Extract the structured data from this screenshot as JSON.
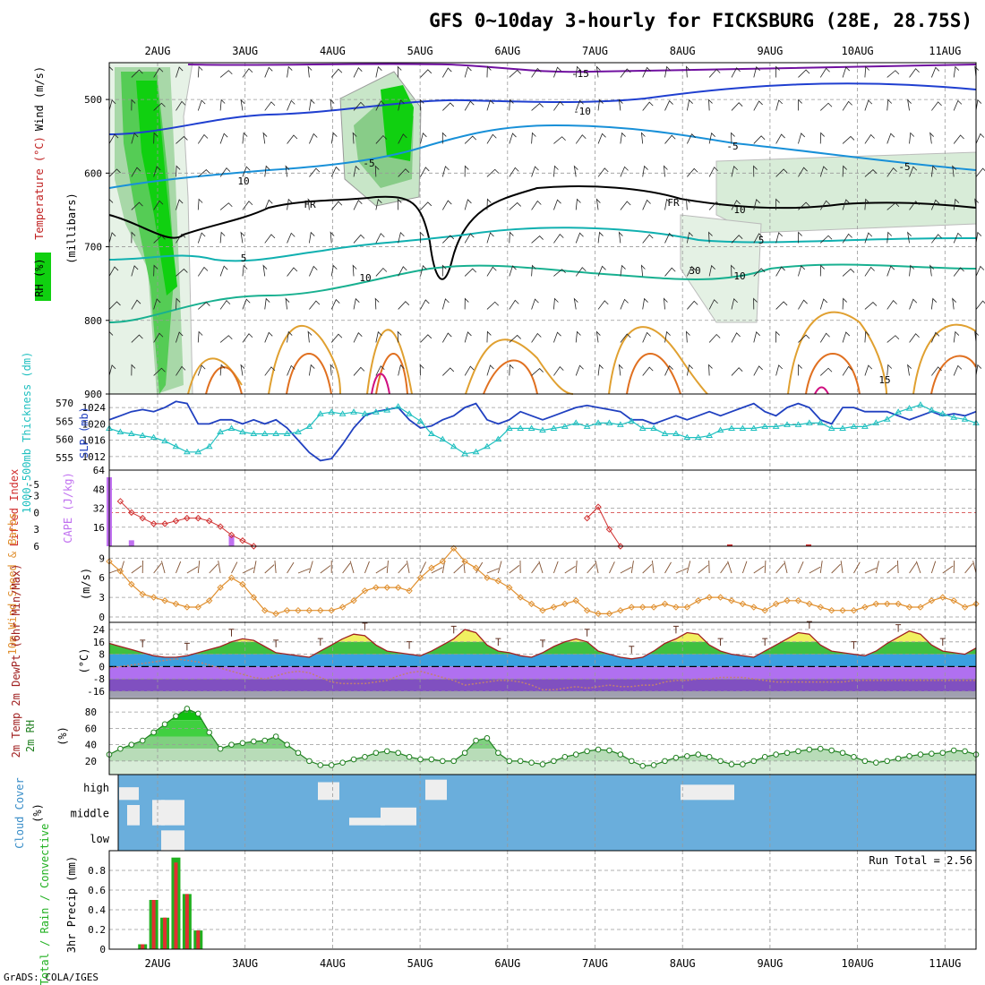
{
  "title": "GFS 0~10day 3-hourly for FICKSBURG (28E, 28.75S)",
  "credit": "GrADS: COLA/IGES",
  "dates": [
    "2AUG",
    "3AUG",
    "4AUG",
    "5AUG",
    "6AUG",
    "7AUG",
    "8AUG",
    "9AUG",
    "10AUG",
    "11AUG"
  ],
  "colors": {
    "rh_green": "#10d010",
    "rh_light": "#e6f2e6",
    "temp_cold": "#1f3fd0",
    "temp_cool": "#20b8b0",
    "temp_warm": "#e0a030",
    "slp": "#2040c0",
    "thickness": "#20c0c0",
    "lifted": "#d03030",
    "cape": "#c070f0",
    "wind10m": "#e09030",
    "barb10m": "#805030",
    "temp2m": "#a02020",
    "rh2m_line": "#208020",
    "cloud": "#6aaedc",
    "precip_total": "#20b020",
    "precip_conv": "#e03030"
  },
  "chart_data": [
    {
      "id": "upper",
      "type": "contour",
      "ylabel_parts": [
        "RH (%)",
        "Temperature (°C)",
        "Wind (m/s)"
      ],
      "yaxis_title": "(millibars)",
      "ylim": [
        900,
        450
      ],
      "yticks": [
        500,
        600,
        700,
        800,
        900
      ],
      "contour_labels": [
        "-15",
        "-10",
        "-5",
        "FR",
        "FR",
        "-5",
        "-5",
        "5",
        "5",
        "10",
        "10",
        "15",
        "10",
        "10",
        "30"
      ]
    },
    {
      "id": "slp",
      "type": "line",
      "ylabel_left": "1000-500mb Thickness (dm)",
      "ylabel_right": "SLP (mb)",
      "left_ticks": [
        555,
        560,
        565,
        570
      ],
      "right_ticks": [
        1012,
        1016,
        1020,
        1024
      ],
      "series": [
        {
          "name": "SLP (mb)",
          "values": [
            1021,
            1022,
            1023,
            1023.5,
            1023,
            1024,
            1025.5,
            1025,
            1020,
            1020,
            1021,
            1021,
            1020,
            1021,
            1020,
            1021,
            1019,
            1016,
            1013,
            1011,
            1011.5,
            1015,
            1019,
            1022,
            1023,
            1023.5,
            1024,
            1021,
            1019,
            1019.5,
            1021,
            1022,
            1024,
            1025,
            1021,
            1020,
            1021,
            1023,
            1022,
            1021,
            1022,
            1023,
            1024,
            1024.5,
            1024,
            1023.5,
            1023,
            1021,
            1021,
            1020,
            1021,
            1022,
            1021,
            1022,
            1023,
            1022,
            1023,
            1024,
            1025,
            1023,
            1022,
            1024,
            1025,
            1024,
            1021,
            1020,
            1024,
            1024,
            1023,
            1023,
            1023,
            1022,
            1021,
            1022,
            1023,
            1022,
            1022.5,
            1022,
            1023
          ]
        },
        {
          "name": "1000-500mb Thickness (dm)",
          "values": [
            563,
            562,
            561.5,
            561,
            560.5,
            559.5,
            558,
            556.5,
            556.5,
            558,
            562,
            563,
            562,
            561.5,
            561.5,
            561.5,
            561.5,
            562,
            563.5,
            567,
            567.5,
            567,
            567.5,
            567,
            567.5,
            568,
            569,
            567,
            565,
            561.5,
            560,
            558,
            556,
            556.5,
            558,
            560,
            563,
            563,
            563,
            562.5,
            563,
            563.5,
            564.5,
            563.5,
            564.5,
            564.5,
            564,
            565,
            563,
            563,
            561.5,
            561.5,
            560.5,
            560.5,
            561,
            562.5,
            563,
            563,
            563,
            563.5,
            563.5,
            564,
            564,
            564.5,
            564.5,
            563,
            563,
            563.5,
            563.5,
            564.5,
            565.5,
            567.5,
            568.5,
            569.5,
            568,
            567,
            566,
            565.5,
            564.5
          ]
        }
      ]
    },
    {
      "id": "cape",
      "type": "bar+line",
      "ylabel_left": "Lifted Index",
      "ylabel_right": "CAPE (J/kg)",
      "left_ticks": [
        "-5",
        "-3",
        "0",
        "3",
        "6"
      ],
      "right_ticks": [
        16,
        32,
        48,
        64
      ],
      "series": [
        {
          "name": "Lifted Index",
          "values": [
            null,
            -2,
            0,
            1,
            2,
            2,
            1.5,
            1,
            1,
            1.5,
            2.5,
            4,
            5,
            6,
            null,
            null,
            null,
            null,
            null,
            null,
            null,
            null,
            null,
            null,
            null,
            null,
            null,
            null,
            null,
            null,
            null,
            null,
            null,
            null,
            null,
            null,
            null,
            null,
            null,
            null,
            null,
            null,
            null,
            1,
            -1,
            3,
            6
          ]
        },
        {
          "name": "CAPE (J/kg)",
          "values": [
            58,
            0,
            5,
            0,
            0,
            0,
            0,
            0,
            0,
            0,
            0,
            9,
            0,
            0,
            0,
            0,
            0,
            0,
            0,
            0,
            0,
            0,
            0,
            0,
            0,
            0,
            0,
            0,
            0,
            0,
            0,
            0,
            0,
            0,
            0,
            0,
            0,
            0,
            0,
            0,
            0,
            0,
            0,
            0,
            0,
            0,
            0,
            0,
            0,
            0,
            0,
            0,
            0,
            0,
            0,
            0,
            0,
            0,
            0,
            0,
            0,
            0,
            0,
            0,
            0,
            0,
            0,
            0,
            0,
            0,
            0,
            0,
            0,
            0,
            0,
            0,
            0,
            0,
            0,
            0
          ]
        }
      ]
    },
    {
      "id": "wind10m",
      "type": "line",
      "ylabel_left": "10m Wind Speed & Barbs",
      "ylabel_right": "(m/s)",
      "yticks": [
        0,
        3,
        6,
        9
      ],
      "series": [
        {
          "name": "10m Wind Speed (m/s)",
          "values": [
            8.5,
            7,
            5,
            3.5,
            3,
            2.5,
            2,
            1.5,
            1.5,
            2.5,
            4.5,
            6,
            5,
            3,
            1,
            0.5,
            1,
            1,
            1,
            1,
            1,
            1.5,
            2.5,
            4,
            4.5,
            4.5,
            4.5,
            4,
            6,
            7.5,
            8.5,
            10.5,
            8.5,
            7.5,
            6,
            5.5,
            4.5,
            3,
            2,
            1,
            1.5,
            2,
            2.5,
            1,
            0.5,
            0.5,
            1,
            1.5,
            1.5,
            1.5,
            2,
            1.5,
            1.5,
            2.5,
            3,
            3,
            2.5,
            2,
            1.5,
            1,
            2,
            2.5,
            2.5,
            2,
            1.5,
            1,
            1,
            1,
            1.5,
            2,
            2,
            2,
            1.5,
            1.5,
            2.5,
            3,
            2.5,
            1.5,
            2
          ]
        }
      ]
    },
    {
      "id": "temp2m",
      "type": "area+line",
      "ylabel_left": "2m Temp 2m DewPt (6hr Min/Max)",
      "ylabel_right": "(°C)",
      "yticks": [
        24,
        16,
        8,
        0,
        -8,
        -16
      ],
      "series": [
        {
          "name": "2m Temp",
          "values": [
            15,
            13,
            11,
            9,
            7,
            6,
            6,
            7,
            9,
            11,
            13,
            16,
            18,
            17,
            13,
            9,
            8,
            7,
            6,
            10,
            14,
            18,
            21,
            20,
            14,
            10,
            9,
            8,
            7,
            10,
            14,
            18,
            24,
            22,
            14,
            10,
            9,
            7,
            6,
            9,
            13,
            16,
            18,
            16,
            10,
            8,
            6,
            5,
            6,
            10,
            15,
            18,
            22,
            21,
            14,
            10,
            8,
            7,
            6,
            10,
            14,
            18,
            22,
            21,
            14,
            10,
            9,
            8,
            7,
            10,
            15,
            19,
            23,
            21,
            14,
            10,
            9,
            8,
            12
          ]
        },
        {
          "name": "2m DewPt",
          "values": [
            -1,
            0,
            1,
            2,
            3,
            4,
            5,
            4,
            3,
            1,
            -1,
            -3,
            -5,
            -7,
            -8,
            -6,
            -4,
            -3,
            -4,
            -7,
            -10,
            -11,
            -11,
            -11,
            -10,
            -9,
            -6,
            -4,
            -3,
            -5,
            -7,
            -9,
            -12,
            -11,
            -10,
            -9,
            -9,
            -10,
            -12,
            -15,
            -15,
            -14,
            -13,
            -14,
            -13,
            -12,
            -13,
            -13,
            -12,
            -12,
            -10,
            -9,
            -9,
            -8,
            -8,
            -7,
            -7,
            -7,
            -8,
            -9,
            -10,
            -10,
            -10,
            -10,
            -10,
            -10,
            -10,
            -9,
            -9,
            -9,
            -9,
            -9,
            -9,
            -9,
            -9,
            -9,
            -9,
            -9,
            -9
          ]
        }
      ]
    },
    {
      "id": "rh2m",
      "type": "area+line",
      "ylabel_left": "2m RH",
      "ylabel_right": "(%)",
      "yticks": [
        20,
        40,
        60,
        80
      ],
      "series": [
        {
          "name": "2m RH (%)",
          "values": [
            28,
            35,
            40,
            45,
            55,
            65,
            75,
            84,
            78,
            55,
            35,
            40,
            42,
            44,
            45,
            50,
            40,
            30,
            20,
            15,
            15,
            18,
            22,
            25,
            30,
            32,
            30,
            25,
            22,
            22,
            20,
            20,
            30,
            45,
            48,
            30,
            20,
            20,
            18,
            16,
            20,
            25,
            28,
            32,
            34,
            33,
            28,
            20,
            14,
            15,
            20,
            24,
            26,
            28,
            25,
            20,
            16,
            16,
            20,
            25,
            28,
            30,
            32,
            34,
            35,
            33,
            30,
            25,
            20,
            18,
            20,
            23,
            26,
            28,
            29,
            30,
            33,
            32,
            28
          ]
        }
      ]
    },
    {
      "id": "cloud",
      "type": "heatmap",
      "ylabel_left": "Cloud Cover",
      "ylabel_right": "(%)",
      "row_labels": [
        "high",
        "middle",
        "low"
      ],
      "cleared_blocks": [
        {
          "row": "high",
          "label": "4AUG",
          "value": 0.7
        },
        {
          "row": "high",
          "label": "5AUG",
          "value": 0.8
        },
        {
          "row": "high",
          "label": "8AUG",
          "value": 0.6
        },
        {
          "row": "middle",
          "label": "2AUG",
          "value": 0.9
        },
        {
          "row": "middle",
          "label": "4AUG",
          "value": 0.6
        },
        {
          "row": "middle",
          "label": "5AUG",
          "value": 0.7
        },
        {
          "row": "low",
          "label": "2AUG",
          "value": 0.5
        }
      ]
    },
    {
      "id": "precip",
      "type": "bar",
      "ylabel_left": "Total / Rain / Convective",
      "ylabel_right": "3hr Precip (mm)",
      "yticks": [
        0,
        0.2,
        0.4,
        0.6,
        0.8
      ],
      "run_total_label": "Run Total = 2.56",
      "series": [
        {
          "name": "Total",
          "values": [
            0,
            0,
            0,
            0.05,
            0.5,
            0.32,
            0.93,
            0.56,
            0.19
          ]
        },
        {
          "name": "Convective",
          "values": [
            0,
            0,
            0,
            0.05,
            0.5,
            0.32,
            0.88,
            0.56,
            0.19
          ]
        }
      ]
    }
  ]
}
